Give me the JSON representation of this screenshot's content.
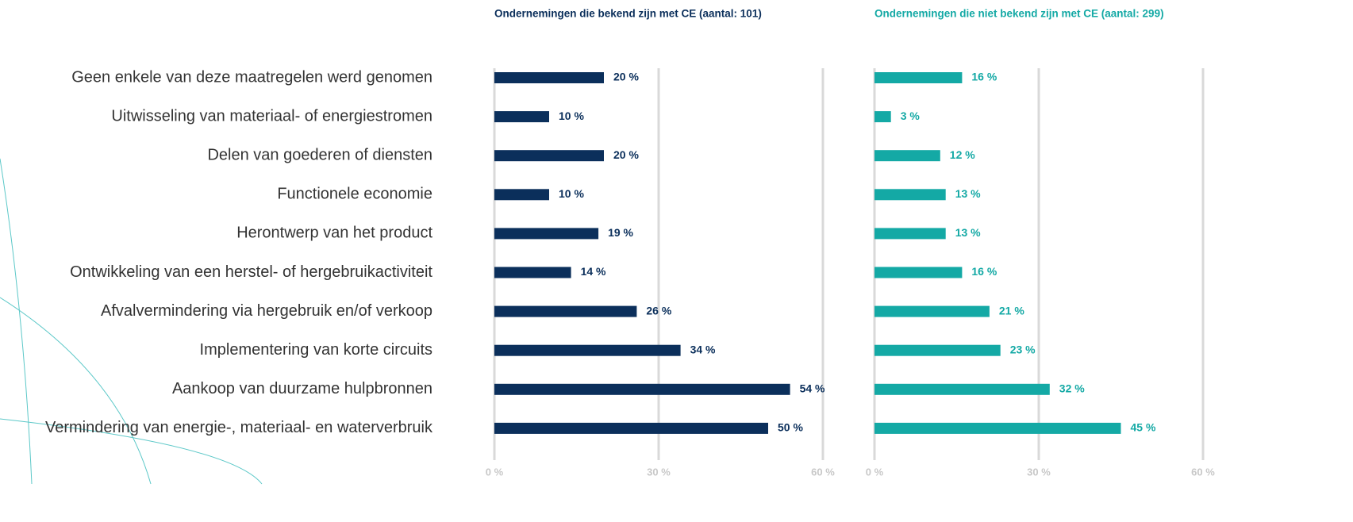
{
  "chart_data": {
    "type": "bar",
    "orientation": "horizontal",
    "categories": [
      "Geen enkele van deze maatregelen werd genomen",
      "Uitwisseling van materiaal- of energiestromen",
      "Delen van goederen of diensten",
      "Functionele economie",
      "Herontwerp van het product",
      "Ontwikkeling van een herstel- of hergebruikactiviteit",
      "Afvalvermindering via hergebruik en/of verkoop",
      "Implementering van korte circuits",
      "Aankoop van duurzame hulpbronnen",
      "Vermindering van energie-, materiaal- en waterverbruik"
    ],
    "series": [
      {
        "name": "Ondernemingen die bekend zijn met CE (aantal: 101)",
        "color": "#0b2f5b",
        "values": [
          20,
          10,
          20,
          10,
          19,
          14,
          26,
          34,
          54,
          50
        ],
        "value_labels": [
          "20 %",
          "10 %",
          "20 %",
          "10 %",
          "19 %",
          "14 %",
          "26 %",
          "34 %",
          "54 %",
          "50 %"
        ]
      },
      {
        "name": "Ondernemingen die niet bekend zijn met CE (aantal: 299)",
        "color": "#14a9a5",
        "values": [
          16,
          3,
          12,
          13,
          13,
          16,
          21,
          23,
          32,
          45
        ],
        "value_labels": [
          "16 %",
          "3 %",
          "12 %",
          "13 %",
          "13 %",
          "16 %",
          "21 %",
          "23 %",
          "32 %",
          "45 %"
        ]
      }
    ],
    "xlim": [
      0,
      60
    ],
    "xticks": [
      {
        "value": 0,
        "label": "0 %"
      },
      {
        "value": 30,
        "label": "30 %"
      },
      {
        "value": 60,
        "label": "60 %"
      }
    ],
    "grid": true
  }
}
